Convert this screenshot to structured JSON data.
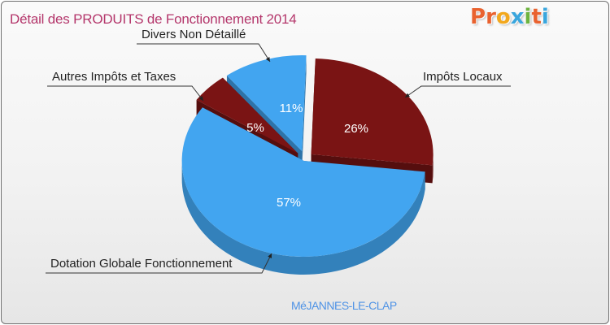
{
  "title": "Détail des PRODUITS de Fonctionnement 2014",
  "logo": {
    "text": "Proxiti",
    "letters": [
      "P",
      "r",
      "o",
      "x",
      "i",
      "t",
      "i"
    ],
    "colors": [
      "#e9622f",
      "#e9622f",
      "#f2a81e",
      "#3aa6dd",
      "#6db33f",
      "#e9622f",
      "#3aa6dd"
    ]
  },
  "commune": "MéJANNES-LE-CLAP",
  "chart_data": {
    "type": "pie",
    "title": "Détail des PRODUITS de Fonctionnement 2014",
    "slices": [
      {
        "label": "Impôts Locaux",
        "value": 26,
        "pct_label": "26%",
        "color": "#7a1414"
      },
      {
        "label": "Dotation Globale Fonctionnement",
        "value": 57,
        "pct_label": "57%",
        "color": "#42a5f0"
      },
      {
        "label": "Autres Impôts et Taxes",
        "value": 5,
        "pct_label": "5%",
        "color": "#7a1414"
      },
      {
        "label": "Divers Non Détaillé",
        "value": 11,
        "pct_label": "11%",
        "color": "#42a5f0"
      }
    ],
    "exploded": true,
    "three_d": true
  }
}
